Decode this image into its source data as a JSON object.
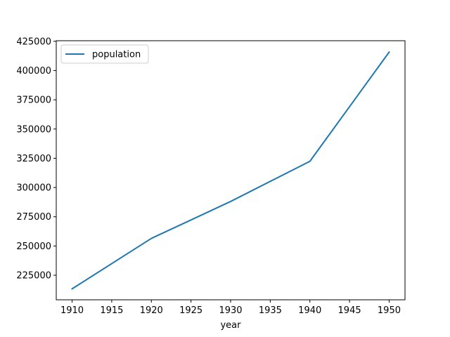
{
  "chart_data": {
    "type": "line",
    "title": "",
    "xlabel": "year",
    "ylabel": "",
    "x": [
      1910,
      1920,
      1930,
      1940,
      1950
    ],
    "series": [
      {
        "name": "population",
        "values": [
          213381,
          256491,
          288076,
          322412,
          415786
        ]
      }
    ],
    "xlim": [
      1908,
      1952
    ],
    "ylim": [
      204000,
      425500
    ],
    "xticks": [
      1910,
      1915,
      1920,
      1925,
      1930,
      1935,
      1940,
      1945,
      1950
    ],
    "yticks": [
      225000,
      250000,
      275000,
      300000,
      325000,
      350000,
      375000,
      400000,
      425000
    ],
    "grid": false,
    "legend_position": "upper-left",
    "colors": {
      "series": "#1f77b4",
      "axis": "#000000"
    }
  }
}
